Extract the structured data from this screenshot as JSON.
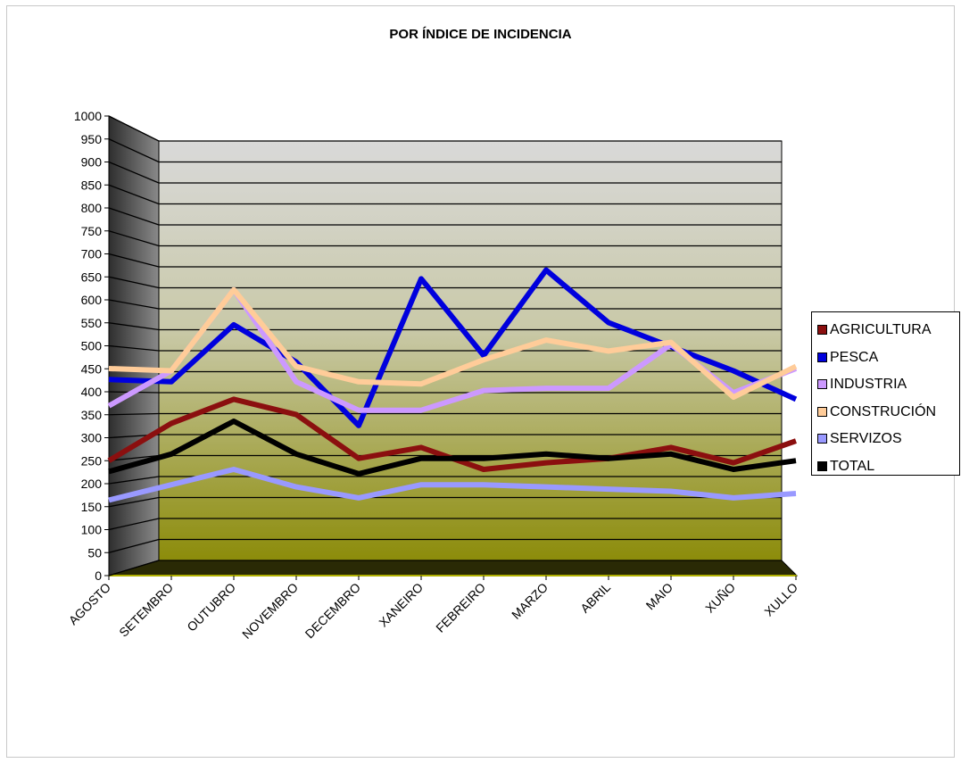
{
  "chart_data": {
    "type": "line",
    "title": "POR ÍNDICE DE INCIDENCIA",
    "xlabel": "",
    "ylabel": "",
    "ylim": [
      0,
      1000
    ],
    "ytick_step": 50,
    "grid": true,
    "legend_position": "right",
    "categories": [
      "AGOSTO",
      "SETEMBRO",
      "OUTUBRO",
      "NOVEMBRO",
      "DECEMBRO",
      "XANEIRO",
      "FEBREIRO",
      "MARZO",
      "ABRIL",
      "MAIO",
      "XUÑO",
      "XULLO"
    ],
    "series": [
      {
        "name": "AGRICULTURA",
        "color": "#8b0f0f",
        "values": [
          240,
          325,
          380,
          345,
          245,
          270,
          220,
          235,
          245,
          270,
          235,
          285
        ]
      },
      {
        "name": "PESCA",
        "color": "#0000dd",
        "values": [
          425,
          420,
          550,
          465,
          320,
          655,
          480,
          675,
          555,
          500,
          445,
          380
        ]
      },
      {
        "name": "INDUSTRIA",
        "color": "#cc99ff",
        "values": [
          365,
          445,
          630,
          420,
          355,
          355,
          400,
          405,
          405,
          505,
          395,
          450
        ]
      },
      {
        "name": "CONSTRUCIÓN",
        "color": "#ffcc99",
        "values": [
          450,
          445,
          630,
          455,
          420,
          415,
          470,
          515,
          490,
          510,
          385,
          455
        ]
      },
      {
        "name": "SERVIZOS",
        "color": "#9999ff",
        "values": [
          150,
          185,
          220,
          180,
          155,
          185,
          185,
          180,
          175,
          170,
          155,
          165
        ]
      },
      {
        "name": "TOTAL",
        "color": "#000000",
        "values": [
          215,
          255,
          330,
          255,
          210,
          245,
          245,
          255,
          245,
          255,
          220,
          240
        ]
      }
    ]
  }
}
